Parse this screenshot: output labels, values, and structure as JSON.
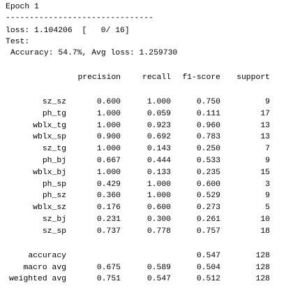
{
  "console": {
    "epoch": "Epoch 1",
    "separator": "-------------------------------",
    "loss_line": "loss: 1.104206  [   0/ 16]",
    "test_label": "Test:",
    "test_result": "Accuracy: 54.7%, Avg loss: 1.259730"
  },
  "report": {
    "columns": [
      "precision",
      "recall",
      "f1-score",
      "support"
    ],
    "rows": [
      [
        "sz_sz",
        "0.600",
        "1.000",
        "0.750",
        "9"
      ],
      [
        "ph_tg",
        "1.000",
        "0.059",
        "0.111",
        "17"
      ],
      [
        "wblx_tg",
        "1.000",
        "0.923",
        "0.960",
        "13"
      ],
      [
        "wblx_sp",
        "0.900",
        "0.692",
        "0.783",
        "13"
      ],
      [
        "sz_tg",
        "1.000",
        "0.143",
        "0.250",
        "7"
      ],
      [
        "ph_bj",
        "0.667",
        "0.444",
        "0.533",
        "9"
      ],
      [
        "wblx_bj",
        "1.000",
        "0.133",
        "0.235",
        "15"
      ],
      [
        "ph_sp",
        "0.429",
        "1.000",
        "0.600",
        "3"
      ],
      [
        "ph_sz",
        "0.360",
        "1.000",
        "0.529",
        "9"
      ],
      [
        "wblx_sz",
        "0.176",
        "0.600",
        "0.273",
        "5"
      ],
      [
        "sz_bj",
        "0.231",
        "0.300",
        "0.261",
        "10"
      ],
      [
        "sz_sp",
        "0.737",
        "0.778",
        "0.757",
        "18"
      ]
    ],
    "summary": [
      [
        "accuracy",
        null,
        null,
        "0.547",
        "128"
      ],
      [
        "macro avg",
        "0.675",
        "0.589",
        "0.504",
        "128"
      ],
      [
        "weighted avg",
        "0.751",
        "0.547",
        "0.512",
        "128"
      ]
    ]
  }
}
